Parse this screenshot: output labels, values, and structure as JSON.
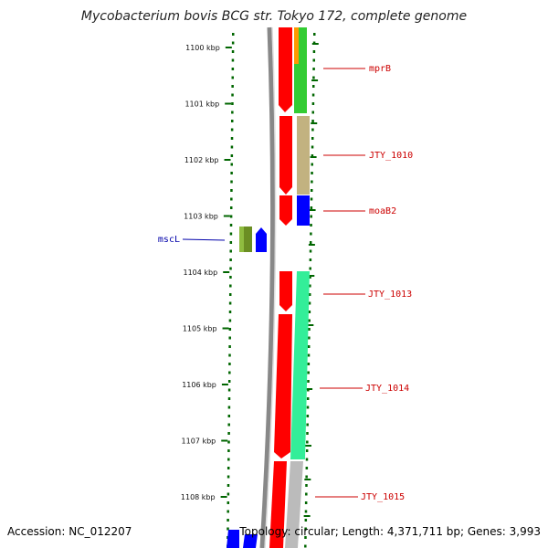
{
  "title": "Mycobacterium bovis BCG str. Tokyo 172, complete genome",
  "footer": {
    "accession": "Accession: NC_012207",
    "summary": "Topology: circular; Length: 4,371,711 bp; Genes: 3,993"
  },
  "scale": {
    "labels": [
      "1100 kbp",
      "1101 kbp",
      "1102 kbp",
      "1103 kbp",
      "1104 kbp",
      "1105 kbp",
      "1106 kbp",
      "1107 kbp",
      "1108 kbp"
    ],
    "positions_kbp": [
      1100,
      1101,
      1102,
      1103,
      1104,
      1105,
      1106,
      1107,
      1108
    ]
  },
  "genes": [
    {
      "name": "mprB",
      "color": "#cc0000"
    },
    {
      "name": "JTY_1010",
      "color": "#cc0000"
    },
    {
      "name": "moaB2",
      "color": "#cc0000"
    },
    {
      "name": "mscL",
      "color": "#0000aa"
    },
    {
      "name": "JTY_1013",
      "color": "#cc0000"
    },
    {
      "name": "JTY_1014",
      "color": "#cc0000"
    },
    {
      "name": "JTY_1015",
      "color": "#cc0000"
    }
  ],
  "colors": {
    "forward_strand": "#ff0000",
    "reverse_strand": "#0000ff",
    "cog_green": "#33cc33",
    "cog_tan": "#c2b280",
    "cog_blue": "#0000ff",
    "cog_teal": "#33ee99",
    "cog_gray": "#bbbbbb",
    "cog_olive": "#6b8e23",
    "ticks": "#006600"
  }
}
